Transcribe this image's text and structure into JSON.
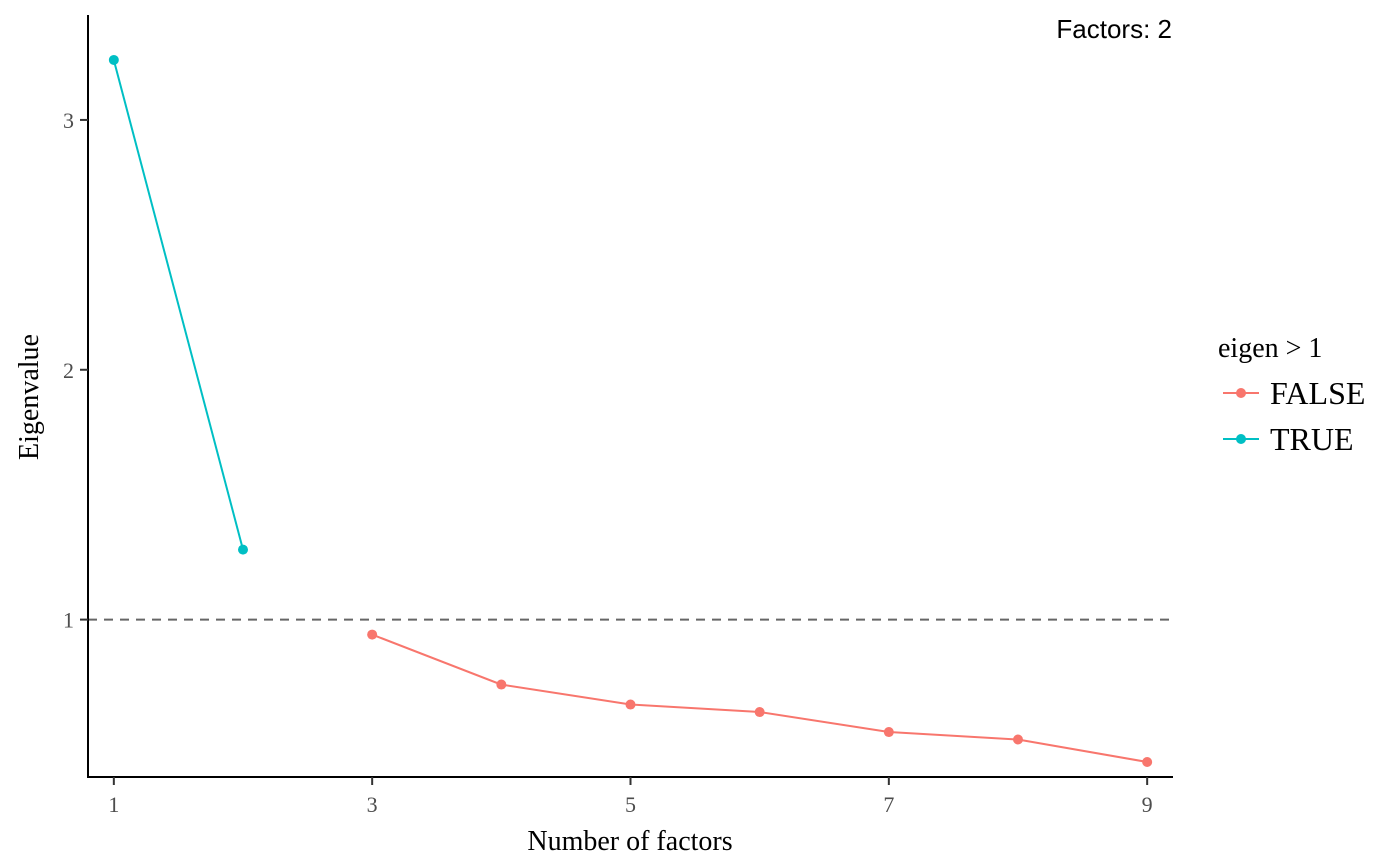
{
  "chart_data": {
    "type": "line",
    "title": "",
    "xlabel": "Number of factors",
    "ylabel": "Eigenvalue",
    "annotation": "Factors: 2",
    "xlim": [
      0.8,
      9.2
    ],
    "ylim": [
      0.37,
      3.42
    ],
    "x_ticks": [
      1,
      3,
      5,
      7,
      9
    ],
    "y_ticks": [
      1,
      2,
      3
    ],
    "reference_line": {
      "y": 1,
      "style": "dashed",
      "color": "#666666"
    },
    "grid": false,
    "legend": {
      "title": "eigen > 1",
      "position": "right"
    },
    "series": [
      {
        "name": "FALSE",
        "color": "#F8766D",
        "x": [
          3,
          4,
          5,
          6,
          7,
          8,
          9
        ],
        "y": [
          0.94,
          0.74,
          0.66,
          0.63,
          0.55,
          0.52,
          0.43
        ]
      },
      {
        "name": "TRUE",
        "color": "#00BFC4",
        "x": [
          1,
          2
        ],
        "y": [
          3.24,
          1.28
        ]
      }
    ]
  }
}
